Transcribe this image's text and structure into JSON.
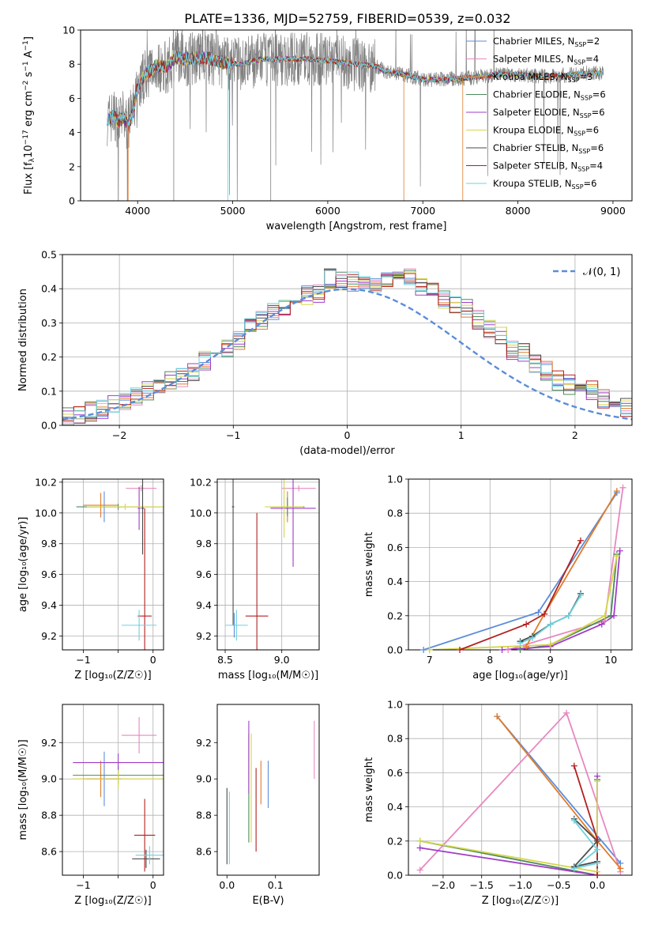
{
  "figure": {
    "title": "PLATE=1336, MJD=52759, FIBERID=0539, z=0.032"
  },
  "colors": {
    "chabrier_miles": "#5b8dd9",
    "salpeter_miles": "#e887c1",
    "kroupa_miles": "#e07b2b",
    "chabrier_elodie": "#4e8a5c",
    "salpeter_elodie": "#a03cc8",
    "kroupa_elodie": "#d6d64a",
    "chabrier_stelib": "#4a4a4a",
    "salpeter_stelib": "#b22020",
    "kroupa_stelib": "#6fd1de",
    "observed": "#808080",
    "gaussian": "#5b8dd9",
    "grid": "#b0b0b0"
  },
  "chart_data": [
    {
      "id": "spectrum",
      "type": "line",
      "xlabel": "wavelength [Angstrom, rest frame]",
      "ylabel": "Flux [f",
      "ylabel_parts": [
        "Flux [f",
        "λ",
        "10",
        "−17",
        " erg cm",
        "−2",
        " s",
        "−1",
        " A",
        "−1",
        "]"
      ],
      "xlim": [
        3400,
        9200
      ],
      "ylim": [
        0,
        10
      ],
      "xticks": [
        4000,
        5000,
        6000,
        7000,
        8000,
        9000
      ],
      "yticks": [
        0,
        2,
        4,
        6,
        8,
        10
      ],
      "grid": false,
      "legend_position": "top-right",
      "legend": [
        {
          "prefix": "Chabrier MILES, N",
          "sub": "SSP",
          "suffix": "=2",
          "color": "#5b8dd9"
        },
        {
          "prefix": "Salpeter MILES, N",
          "sub": "SSP",
          "suffix": "=4",
          "color": "#e887c1"
        },
        {
          "prefix": "Kroupa MILES, N",
          "sub": "SSP",
          "suffix": "=3",
          "color": "#e07b2b"
        },
        {
          "prefix": "Chabrier ELODIE, N",
          "sub": "SSP",
          "suffix": "=6",
          "color": "#4e8a5c"
        },
        {
          "prefix": "Salpeter ELODIE, N",
          "sub": "SSP",
          "suffix": "=6",
          "color": "#a03cc8"
        },
        {
          "prefix": "Kroupa ELODIE, N",
          "sub": "SSP",
          "suffix": "=6",
          "color": "#d6d64a"
        },
        {
          "prefix": "Chabrier STELIB, N",
          "sub": "SSP",
          "suffix": "=6",
          "color": "#4a4a4a"
        },
        {
          "prefix": "Salpeter STELIB, N",
          "sub": "SSP",
          "suffix": "=4",
          "color": "#b22020"
        },
        {
          "prefix": "Kroupa STELIB, N",
          "sub": "SSP",
          "suffix": "=6",
          "color": "#6fd1de"
        }
      ],
      "continuum": {
        "x": [
          3700,
          3750,
          3800,
          3850,
          3900,
          3950,
          4000,
          4100,
          4200,
          4300,
          4400,
          4500,
          4700,
          4900,
          5100,
          5300,
          5500,
          5800,
          6000,
          6300,
          6500,
          6600,
          6800,
          7000,
          7200,
          7500,
          7800,
          8000,
          8200,
          8400,
          8600,
          8800,
          8900
        ],
        "y": [
          4.8,
          5.0,
          4.6,
          4.9,
          4.4,
          5.1,
          6.7,
          7.5,
          7.9,
          7.8,
          8.4,
          8.3,
          8.4,
          8.1,
          8.0,
          8.3,
          8.3,
          8.3,
          8.2,
          8.0,
          7.9,
          7.6,
          7.4,
          7.1,
          7.1,
          7.2,
          7.4,
          7.4,
          7.3,
          7.3,
          7.4,
          7.5,
          7.5
        ]
      }
    },
    {
      "id": "residuals",
      "type": "histogram",
      "xlabel": "(data-model)/error",
      "ylabel": "Normed distribution",
      "xlim": [
        -2.5,
        2.5
      ],
      "ylim": [
        0,
        0.5
      ],
      "xticks": [
        -2,
        -1,
        0,
        1,
        2
      ],
      "yticks": [
        0.0,
        0.1,
        0.2,
        0.3,
        0.4,
        0.5
      ],
      "grid": true,
      "legend_label": "𝒩(0, 1)",
      "legend_position": "top-right",
      "bin_width": 0.1,
      "base_profile": [
        0.02,
        0.02,
        0.03,
        0.03,
        0.04,
        0.05,
        0.06,
        0.07,
        0.08,
        0.1,
        0.11,
        0.13,
        0.14,
        0.16,
        0.19,
        0.21,
        0.23,
        0.25,
        0.29,
        0.31,
        0.33,
        0.35,
        0.36,
        0.38,
        0.39,
        0.43,
        0.42,
        0.42,
        0.43,
        0.41,
        0.42,
        0.42,
        0.43,
        0.41,
        0.39,
        0.37,
        0.35,
        0.34,
        0.31,
        0.28,
        0.26,
        0.22,
        0.21,
        0.18,
        0.16,
        0.13,
        0.12,
        0.11,
        0.1,
        0.08,
        0.06,
        0.05,
        0.04,
        0.04
      ]
    },
    {
      "id": "age-vs-Z",
      "type": "errorbar",
      "xlabel": "Z [log₁₀(Z/Z☉)]",
      "ylabel": "age  [log₁₀(age/yr)]",
      "xlim": [
        -1.3,
        0.15
      ],
      "ylim": [
        9.11,
        10.22
      ],
      "xticks": [
        -1,
        -0.5,
        0
      ],
      "xticklabels": [
        "−1",
        "",
        "0"
      ],
      "yticks": [
        9.2,
        9.4,
        9.6,
        9.8,
        10.0,
        10.2
      ],
      "yticklabels": [
        "9.2",
        "9.4",
        "9.6",
        "9.8",
        "10.0",
        "10.2"
      ],
      "grid": true,
      "points": [
        {
          "color": "#5b8dd9",
          "x": -0.7,
          "y": 10.04,
          "dx": 0.25,
          "dy": 0.1
        },
        {
          "color": "#e887c1",
          "x": -0.17,
          "y": 10.16,
          "dx": 0.22,
          "dy": 0.02
        },
        {
          "color": "#e07b2b",
          "x": -0.75,
          "y": 10.05,
          "dx": 0.25,
          "dy": 0.08
        },
        {
          "color": "#4e8a5c",
          "x": -0.5,
          "y": 10.04,
          "dx": 0.6,
          "dy": 0.02
        },
        {
          "color": "#a03cc8",
          "x": -0.2,
          "y": 10.03,
          "dx": 0.02,
          "dy": 0.14
        },
        {
          "color": "#d6d64a",
          "x": -0.4,
          "y": 10.04,
          "dx": 0.55,
          "dy": 0.02
        },
        {
          "color": "#4a4a4a",
          "x": -0.15,
          "y": 10.03,
          "dx": 0.02,
          "dy": 0.3
        },
        {
          "color": "#b22020",
          "x": -0.12,
          "y": 9.33,
          "dx": 0.1,
          "dy": 0.7
        },
        {
          "color": "#6fd1de",
          "x": -0.2,
          "y": 9.27,
          "dx": 0.25,
          "dy": 0.1
        }
      ]
    },
    {
      "id": "age-vs-mass",
      "type": "errorbar",
      "xlabel": "mass [log₁₀(M/M☉)]",
      "ylabel": "",
      "xlim": [
        8.43,
        9.33
      ],
      "ylim": [
        9.11,
        10.22
      ],
      "xticks": [
        8.5,
        9.0
      ],
      "xticklabels": [
        "8.5",
        "9.0"
      ],
      "yticks": [
        9.2,
        9.4,
        9.6,
        9.8,
        10.0,
        10.2
      ],
      "yticklabels": [
        "9.2",
        "9.4",
        "9.6",
        "9.8",
        "10.0",
        "10.2"
      ],
      "grid": true,
      "points": [
        {
          "color": "#5b8dd9",
          "x": 8.58,
          "y": 9.27,
          "dx": 0.01,
          "dy": 0.08
        },
        {
          "color": "#e887c1",
          "x": 9.15,
          "y": 10.16,
          "dx": 0.15,
          "dy": 0.02
        },
        {
          "color": "#e07b2b",
          "x": 9.05,
          "y": 10.04,
          "dx": 0.15,
          "dy": 0.1
        },
        {
          "color": "#4e8a5c",
          "x": 9.05,
          "y": 10.04,
          "dx": 0.15,
          "dy": 0.06
        },
        {
          "color": "#a03cc8",
          "x": 9.1,
          "y": 10.03,
          "dx": 0.2,
          "dy": 0.38
        },
        {
          "color": "#d6d64a",
          "x": 9.02,
          "y": 10.04,
          "dx": 0.17,
          "dy": 0.2
        },
        {
          "color": "#4a4a4a",
          "x": 8.57,
          "y": 10.04,
          "dx": 0.01,
          "dy": 0.77
        },
        {
          "color": "#b22020",
          "x": 8.78,
          "y": 9.33,
          "dx": 0.1,
          "dy": 0.67
        },
        {
          "color": "#6fd1de",
          "x": 8.6,
          "y": 9.27,
          "dx": 0.1,
          "dy": 0.1
        }
      ]
    },
    {
      "id": "weight-vs-age",
      "type": "line",
      "xlabel": "age  [log₁₀(age/yr)]",
      "ylabel": "mass weight",
      "xlim": [
        6.65,
        10.35
      ],
      "ylim": [
        0,
        1
      ],
      "xticks": [
        7,
        8,
        9,
        10
      ],
      "yticks": [
        0.0,
        0.2,
        0.4,
        0.6,
        0.8,
        1.0
      ],
      "grid": true,
      "series": [
        {
          "color": "#5b8dd9",
          "x": [
            6.9,
            8.8,
            10.1
          ],
          "y": [
            0.0,
            0.22,
            0.92
          ]
        },
        {
          "color": "#e887c1",
          "x": [
            8.3,
            9.9,
            10.2
          ],
          "y": [
            0.0,
            0.17,
            0.95
          ]
        },
        {
          "color": "#e07b2b",
          "x": [
            8.6,
            8.9,
            10.1
          ],
          "y": [
            0.02,
            0.21,
            0.93
          ]
        },
        {
          "color": "#4e8a5c",
          "x": [
            8.5,
            9.0,
            10.0,
            10.1
          ],
          "y": [
            0.0,
            0.03,
            0.2,
            0.56
          ]
        },
        {
          "color": "#a03cc8",
          "x": [
            8.2,
            9.0,
            9.85,
            10.05,
            10.15
          ],
          "y": [
            0.0,
            0.02,
            0.15,
            0.2,
            0.58
          ]
        },
        {
          "color": "#d6d64a",
          "x": [
            7.0,
            9.0,
            9.9,
            10.1
          ],
          "y": [
            0.0,
            0.03,
            0.2,
            0.55
          ]
        },
        {
          "color": "#4a4a4a",
          "x": [
            8.5,
            8.7,
            9.0,
            9.3,
            9.5
          ],
          "y": [
            0.05,
            0.08,
            0.15,
            0.2,
            0.33
          ]
        },
        {
          "color": "#b22020",
          "x": [
            7.5,
            8.6,
            8.9,
            9.5
          ],
          "y": [
            0.0,
            0.15,
            0.21,
            0.64
          ]
        },
        {
          "color": "#6fd1de",
          "x": [
            8.5,
            8.7,
            9.0,
            9.3,
            9.5
          ],
          "y": [
            0.04,
            0.07,
            0.15,
            0.2,
            0.32
          ]
        }
      ]
    },
    {
      "id": "mass-vs-Z",
      "type": "errorbar",
      "xlabel": "Z [log₁₀(Z/Z☉)]",
      "ylabel": "mass [log₁₀(M/M☉)]",
      "xlim": [
        -1.3,
        0.15
      ],
      "ylim": [
        8.47,
        9.41
      ],
      "xticks": [
        -1,
        -0.5,
        0
      ],
      "xticklabels": [
        "−1",
        "",
        "0"
      ],
      "yticks": [
        8.6,
        8.8,
        9.0,
        9.2
      ],
      "yticklabels": [
        "8.6",
        "8.8",
        "9.0",
        "9.2"
      ],
      "grid": true,
      "points": [
        {
          "color": "#5b8dd9",
          "x": -0.7,
          "y": 9.0,
          "dx": 0.25,
          "dy": 0.15
        },
        {
          "color": "#e887c1",
          "x": -0.2,
          "y": 9.24,
          "dx": 0.25,
          "dy": 0.1
        },
        {
          "color": "#e07b2b",
          "x": -0.75,
          "y": 9.0,
          "dx": 0.25,
          "dy": 0.1
        },
        {
          "color": "#4e8a5c",
          "x": -0.5,
          "y": 9.02,
          "dx": 0.65,
          "dy": 0.05
        },
        {
          "color": "#a03cc8",
          "x": -0.5,
          "y": 9.09,
          "dx": 0.65,
          "dy": 0.05
        },
        {
          "color": "#d6d64a",
          "x": -0.5,
          "y": 9.0,
          "dx": 0.65,
          "dy": 0.05
        },
        {
          "color": "#4a4a4a",
          "x": -0.1,
          "y": 8.56,
          "dx": 0.2,
          "dy": 0.05
        },
        {
          "color": "#b22020",
          "x": -0.12,
          "y": 8.69,
          "dx": 0.15,
          "dy": 0.2
        },
        {
          "color": "#6fd1de",
          "x": -0.05,
          "y": 8.58,
          "dx": 0.2,
          "dy": 0.05
        }
      ]
    },
    {
      "id": "mass-vs-EBV",
      "type": "errorbar",
      "xlabel": "E(B-V)",
      "ylabel": "",
      "xlim": [
        -0.02,
        0.19
      ],
      "ylim": [
        8.47,
        9.41
      ],
      "xticks": [
        0.0,
        0.1
      ],
      "xticklabels": [
        "0.0",
        "0.1"
      ],
      "yticks": [
        8.6,
        8.8,
        9.0,
        9.2
      ],
      "yticklabels": [
        "8.6",
        "8.8",
        "9.0",
        "9.2"
      ],
      "grid": false,
      "points": [
        {
          "color": "#5b8dd9",
          "x": 0.085,
          "y": 8.97,
          "dx": 0.0,
          "dy": 0.13
        },
        {
          "color": "#e887c1",
          "x": 0.18,
          "y": 9.16,
          "dx": 0.0,
          "dy": 0.16
        },
        {
          "color": "#e07b2b",
          "x": 0.07,
          "y": 8.98,
          "dx": 0.0,
          "dy": 0.12
        },
        {
          "color": "#4e8a5c",
          "x": 0.045,
          "y": 8.95,
          "dx": 0.0,
          "dy": 0.3
        },
        {
          "color": "#a03cc8",
          "x": 0.045,
          "y": 9.12,
          "dx": 0.0,
          "dy": 0.2
        },
        {
          "color": "#d6d64a",
          "x": 0.05,
          "y": 8.95,
          "dx": 0.0,
          "dy": 0.3
        },
        {
          "color": "#4a4a4a",
          "x": 0.0,
          "y": 8.74,
          "dx": 0.0,
          "dy": 0.21
        },
        {
          "color": "#b22020",
          "x": 0.06,
          "y": 8.83,
          "dx": 0.0,
          "dy": 0.23
        },
        {
          "color": "#6fd1de",
          "x": 0.005,
          "y": 8.73,
          "dx": 0.0,
          "dy": 0.2
        }
      ]
    },
    {
      "id": "weight-vs-Z",
      "type": "line",
      "xlabel": "Z [log₁₀(Z/Z☉)]",
      "ylabel": "mass weight",
      "xlim": [
        -2.45,
        0.45
      ],
      "ylim": [
        0,
        1
      ],
      "xticks": [
        -2.0,
        -1.5,
        -1.0,
        -0.5,
        0.0
      ],
      "xticklabels": [
        "−2.0",
        "−1.5",
        "−1.0",
        "−0.5",
        "0.0"
      ],
      "yticks": [
        0.0,
        0.2,
        0.4,
        0.6,
        0.8,
        1.0
      ],
      "grid": true,
      "series": [
        {
          "color": "#5b8dd9",
          "x": [
            -1.3,
            0.3
          ],
          "y": [
            0.93,
            0.07
          ]
        },
        {
          "color": "#e887c1",
          "x": [
            -2.3,
            -0.4,
            0.3
          ],
          "y": [
            0.03,
            0.95,
            0.02
          ]
        },
        {
          "color": "#e07b2b",
          "x": [
            -1.3,
            0.0,
            0.3
          ],
          "y": [
            0.93,
            0.2,
            0.04
          ]
        },
        {
          "color": "#4e8a5c",
          "x": [
            -2.3,
            0.0,
            0.0
          ],
          "y": [
            0.2,
            0.0,
            0.56
          ]
        },
        {
          "color": "#a03cc8",
          "x": [
            -2.3,
            0.0,
            0.0
          ],
          "y": [
            0.16,
            0.0,
            0.58
          ]
        },
        {
          "color": "#d6d64a",
          "x": [
            -2.3,
            0.0,
            0.0
          ],
          "y": [
            0.2,
            0.02,
            0.55
          ]
        },
        {
          "color": "#4a4a4a",
          "x": [
            -0.3,
            0.0,
            -0.3,
            0.0
          ],
          "y": [
            0.33,
            0.2,
            0.05,
            0.08
          ]
        },
        {
          "color": "#b22020",
          "x": [
            -0.3,
            0.0,
            0.0
          ],
          "y": [
            0.64,
            0.21,
            0.0
          ]
        },
        {
          "color": "#6fd1de",
          "x": [
            -0.3,
            0.0,
            -0.3,
            0.0
          ],
          "y": [
            0.32,
            0.15,
            0.04,
            0.07
          ]
        }
      ]
    }
  ]
}
